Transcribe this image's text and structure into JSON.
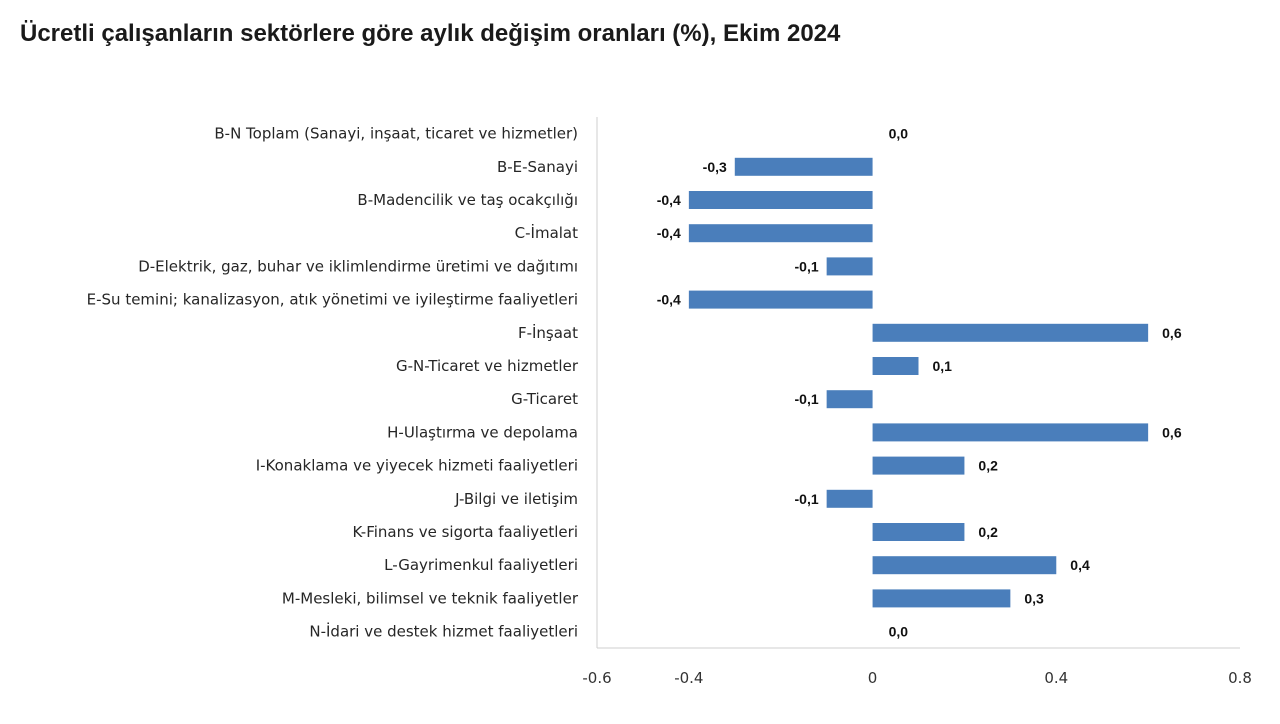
{
  "chart_data": {
    "type": "bar",
    "orientation": "horizontal",
    "title": "Ücretli çalışanların sektörlere göre aylık değişim oranları (%), Ekim 2024",
    "categories": [
      "B-N Toplam (Sanayi, inşaat, ticaret ve hizmetler)",
      "B-E-Sanayi",
      "B-Madencilik ve taş ocakçılığı",
      "C-İmalat",
      "D-Elektrik, gaz, buhar ve iklimlendirme üretimi ve dağıtımı",
      "E-Su temini; kanalizasyon, atık yönetimi ve iyileştirme faaliyetleri",
      "F-İnşaat",
      "G-N-Ticaret ve hizmetler",
      "G-Ticaret",
      "H-Ulaştırma ve depolama",
      "I-Konaklama ve yiyecek hizmeti faaliyetleri",
      "J-Bilgi ve iletişim",
      "K-Finans ve sigorta faaliyetleri",
      "L-Gayrimenkul faaliyetleri",
      "M-Mesleki, bilimsel ve teknik faaliyetler",
      "N-İdari ve destek hizmet faaliyetleri"
    ],
    "values": [
      0.0,
      -0.3,
      -0.4,
      -0.4,
      -0.1,
      -0.4,
      0.6,
      0.1,
      -0.1,
      0.6,
      0.2,
      -0.1,
      0.2,
      0.4,
      0.3,
      0.0
    ],
    "data_labels": [
      "0,0",
      "-0,3",
      "-0,4",
      "-0,4",
      "-0,1",
      "-0,4",
      "0,6",
      "0,1",
      "-0,1",
      "0,6",
      "0,2",
      "-0,1",
      "0,2",
      "0,4",
      "0,3",
      "0,0"
    ],
    "xlim": [
      -0.6,
      0.8
    ],
    "xticks": [
      -0.6,
      -0.4,
      0,
      0.4,
      0.8
    ],
    "xtick_labels": [
      "-0.6",
      "-0.4",
      "0",
      "0.4",
      "0.8"
    ],
    "bar_color": "#4a7ebb",
    "grid": false,
    "legend": "none"
  }
}
